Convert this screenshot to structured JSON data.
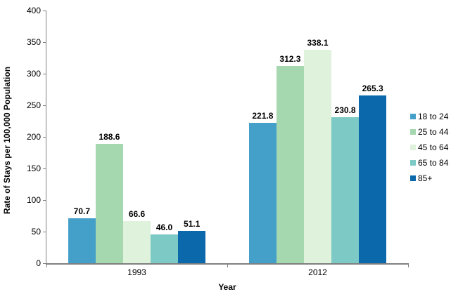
{
  "chart_data": {
    "type": "bar",
    "xlabel": "Year",
    "ylabel": "Rate of Stays per 100,000 Population",
    "categories": [
      "1993",
      "2012"
    ],
    "series": [
      {
        "name": "18 to 24",
        "values": [
          70.7,
          221.8
        ],
        "color": "#45A0C9"
      },
      {
        "name": "25 to 44",
        "values": [
          188.6,
          312.3
        ],
        "color": "#A6D8B0"
      },
      {
        "name": "45 to 64",
        "values": [
          66.6,
          338.1
        ],
        "color": "#DEF2DC"
      },
      {
        "name": "65 to 84",
        "values": [
          46.0,
          230.8
        ],
        "color": "#7CC9C5"
      },
      {
        "name": "85+",
        "values": [
          51.1,
          265.3
        ],
        "color": "#0B68AA"
      }
    ],
    "ylim": [
      0,
      400
    ],
    "ytick_step": 50,
    "grid": false,
    "legend_position": "right",
    "value_labels": true,
    "value_label_decimals": 1,
    "axis_color": "#808080",
    "text_color": "#000000"
  }
}
